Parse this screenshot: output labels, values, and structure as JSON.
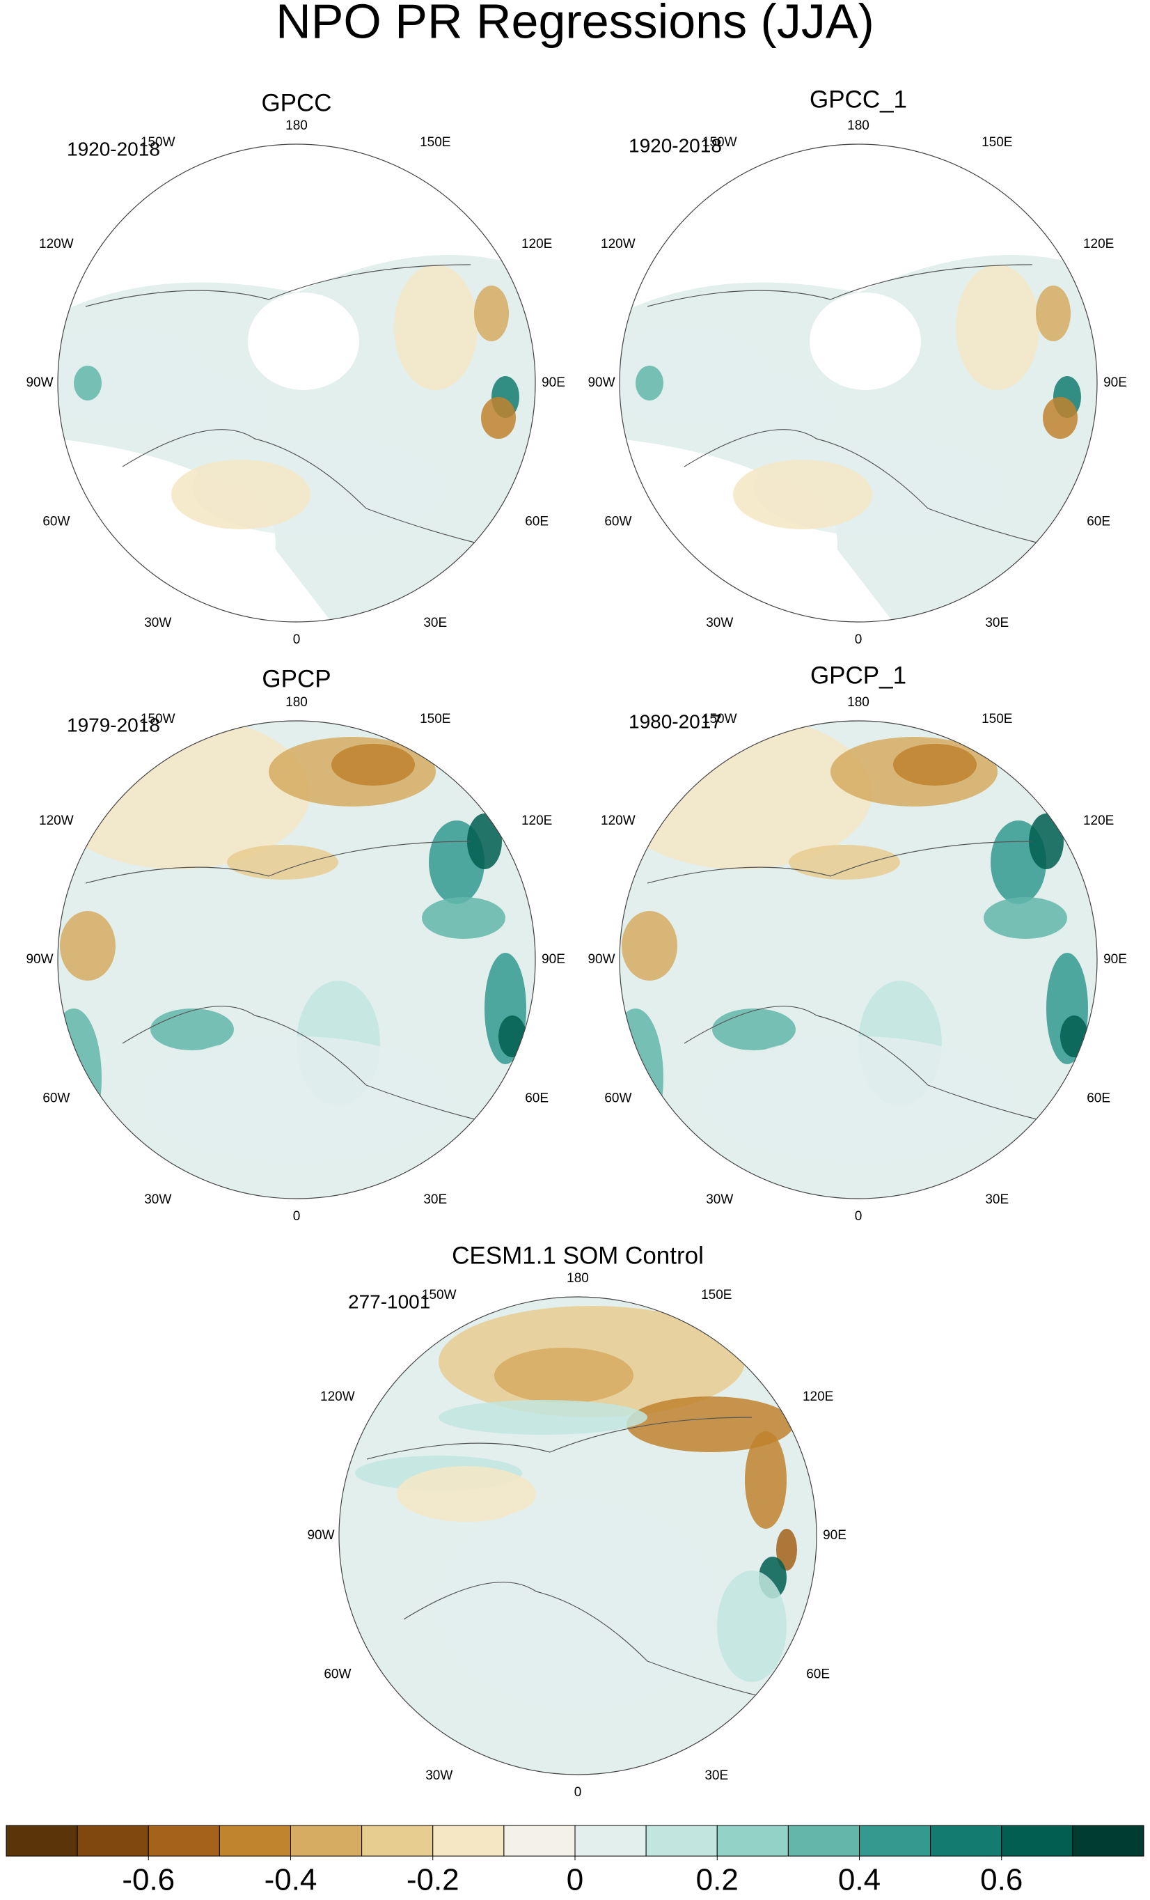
{
  "title": "NPO PR Regressions (JJA)",
  "longitude_labels": [
    "180",
    "150E",
    "120E",
    "90E",
    "60E",
    "30E",
    "0",
    "30W",
    "60W",
    "90W",
    "120W",
    "150W"
  ],
  "panels": [
    {
      "title": "GPCC",
      "period": "1920-2018"
    },
    {
      "title": "GPCC_1",
      "period": "1920-2018"
    },
    {
      "title": "GPCP",
      "period": "1979-2018"
    },
    {
      "title": "GPCP_1",
      "period": "1980-2017"
    },
    {
      "title": "CESM1.1 SOM Control",
      "period": "277-1001"
    }
  ],
  "colorbar": {
    "colors": [
      "#5a3509",
      "#80470f",
      "#a5621a",
      "#c0832e",
      "#d6ac62",
      "#e8cd91",
      "#f5e6c4",
      "#f4f1e8",
      "#e3efed",
      "#c2e6df",
      "#93d2c6",
      "#62b6aa",
      "#349a8f",
      "#137b6f",
      "#015e50",
      "#003c30"
    ],
    "lim": [
      -0.8,
      0.8
    ],
    "ticks": [
      -0.6,
      -0.4,
      -0.2,
      0,
      0.2,
      0.4,
      0.6
    ]
  }
}
